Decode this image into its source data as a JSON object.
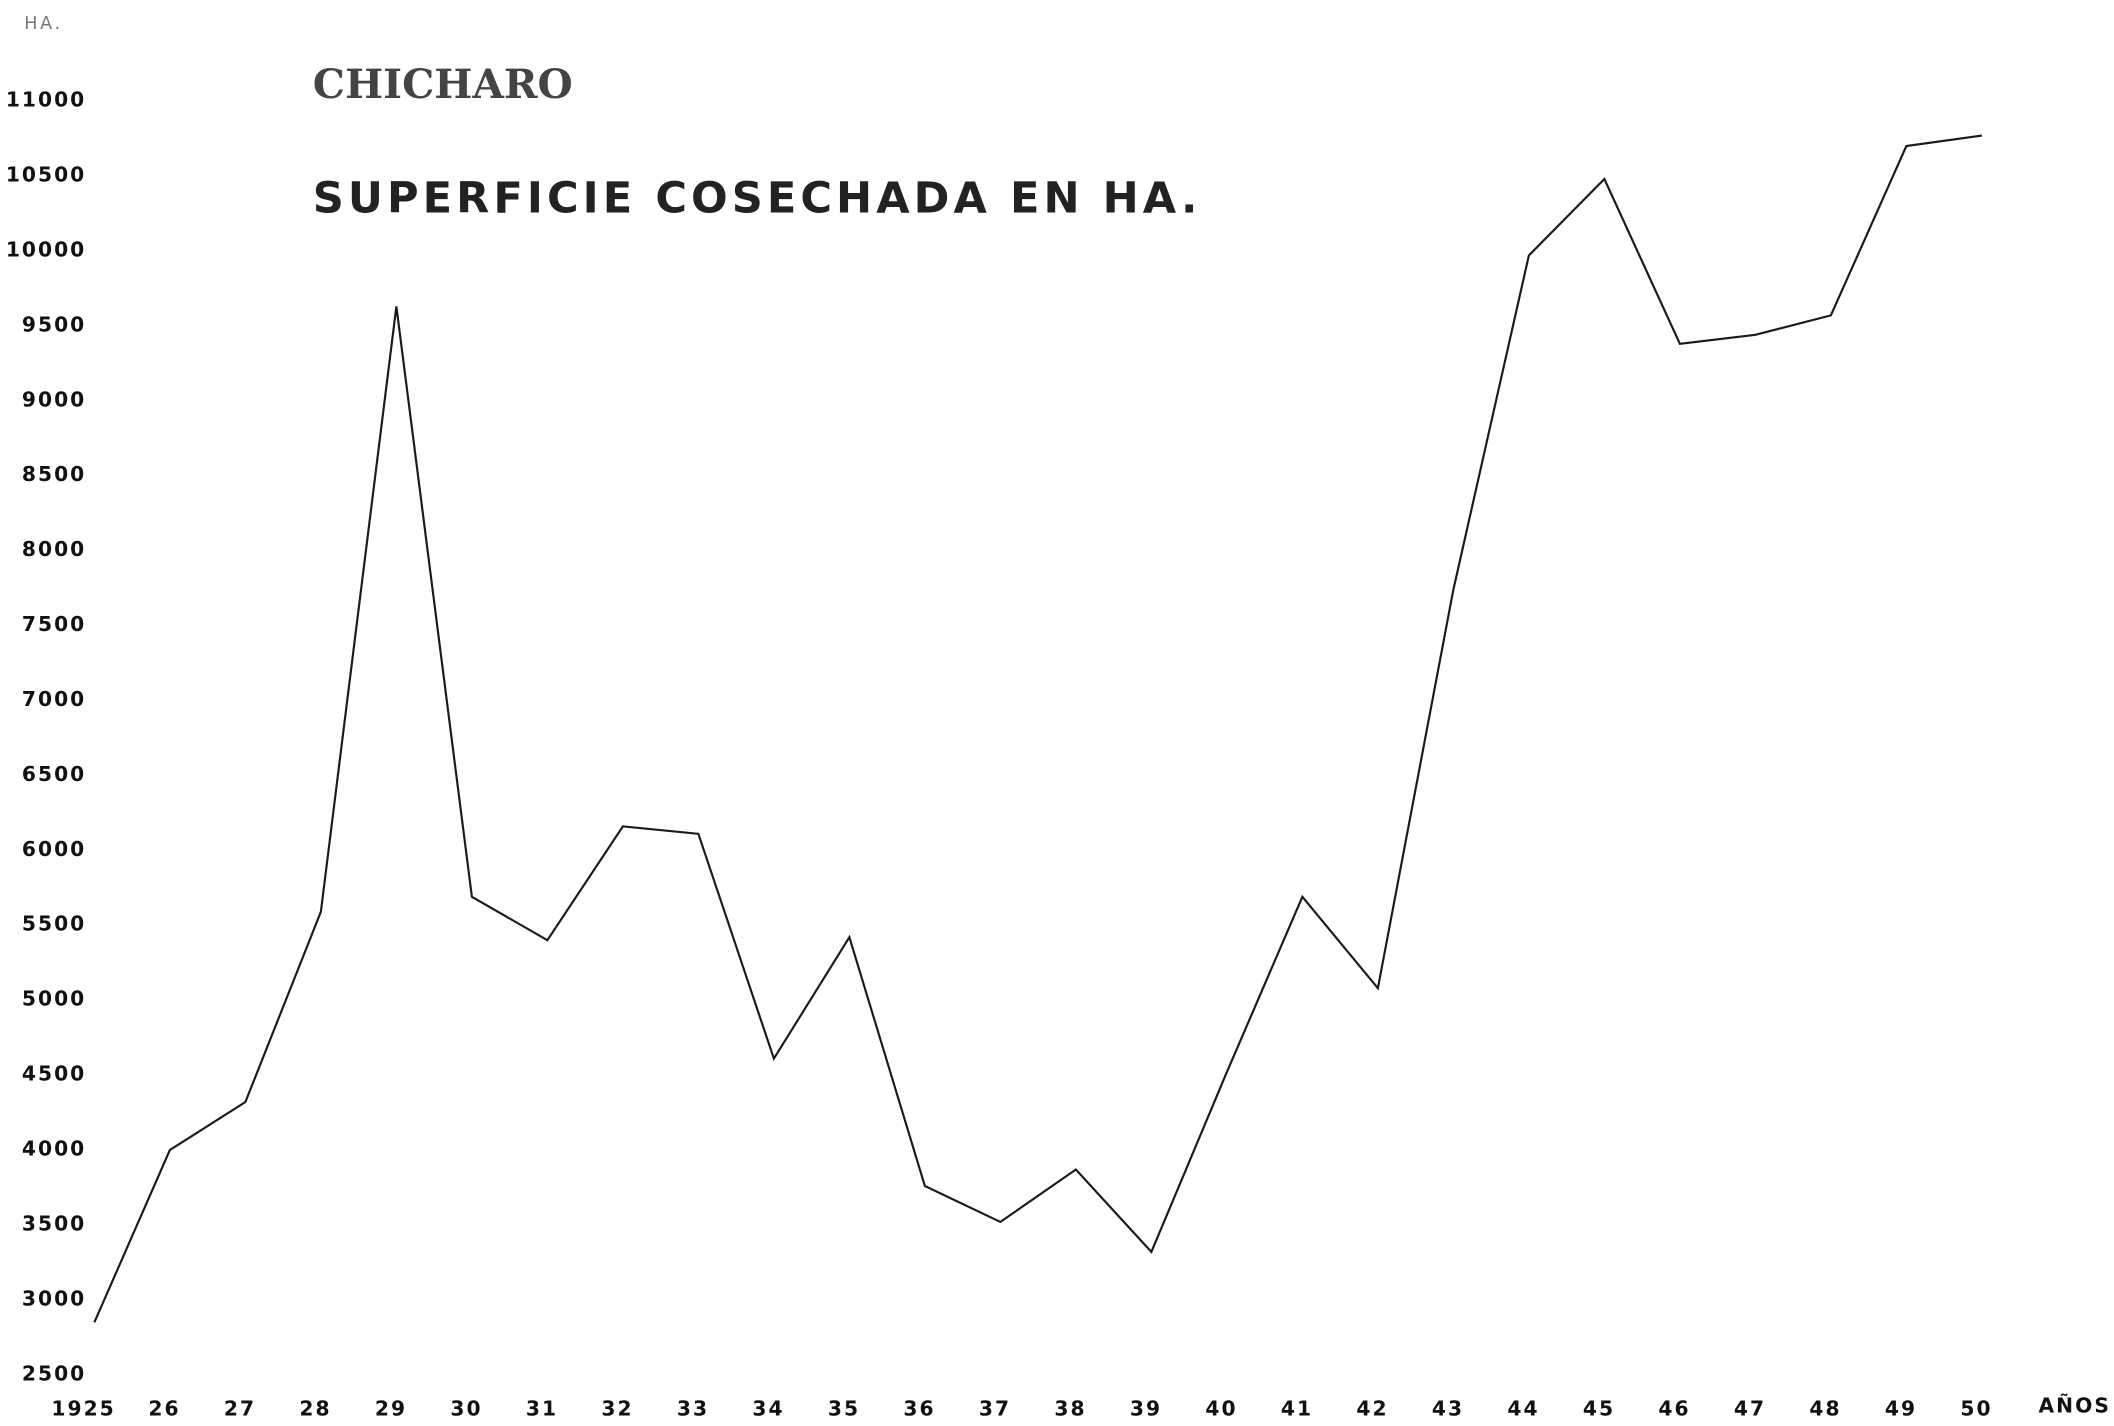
{
  "chart_data": {
    "type": "line",
    "title": "CHICHARO",
    "subtitle": "SUPERFICIE COSECHADA EN HA.",
    "y_label": "HA.",
    "x_label": "AÑOS",
    "categories": [
      "1925",
      "26",
      "27",
      "28",
      "29",
      "30",
      "31",
      "32",
      "33",
      "34",
      "35",
      "36",
      "37",
      "38",
      "39",
      "40",
      "41",
      "42",
      "43",
      "44",
      "45",
      "46",
      "47",
      "48",
      "49",
      "50"
    ],
    "series": [
      {
        "name": "Superficie cosechada",
        "color": "#1a1a1a",
        "values": [
          2850,
          4000,
          4320,
          5590,
          9630,
          5690,
          5400,
          6160,
          6110,
          4610,
          5420,
          3760,
          3520,
          3870,
          3320,
          4520,
          5690,
          5080,
          7740,
          9970,
          10480,
          9380,
          9440,
          9570,
          10700,
          10770
        ]
      }
    ],
    "ylim": [
      2500,
      11000
    ],
    "yticks": [
      2500,
      3000,
      3500,
      4000,
      4500,
      5000,
      5500,
      6000,
      6500,
      7000,
      7500,
      8000,
      8500,
      9000,
      9500,
      10000,
      10500,
      11000
    ],
    "grid": false
  }
}
